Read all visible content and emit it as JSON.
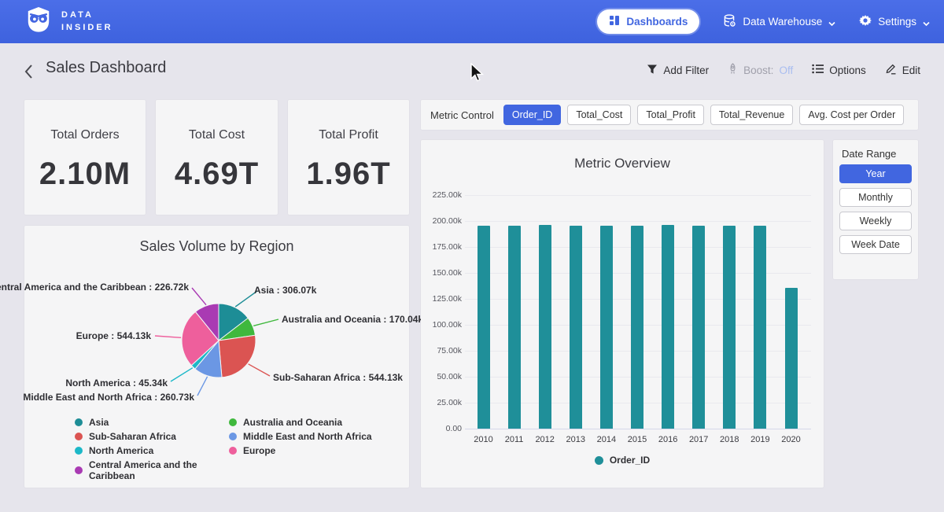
{
  "navbar": {
    "brand_line1": "DATA",
    "brand_line2": "INSIDER",
    "dashboards_label": "Dashboards",
    "data_warehouse_label": "Data Warehouse",
    "settings_label": "Settings"
  },
  "header": {
    "title": "Sales Dashboard",
    "add_filter_label": "Add Filter",
    "boost_label": "Boost:",
    "boost_state": "Off",
    "options_label": "Options",
    "edit_label": "Edit"
  },
  "kpis": [
    {
      "label": "Total Orders",
      "value": "2.10M"
    },
    {
      "label": "Total Cost",
      "value": "4.69T"
    },
    {
      "label": "Total Profit",
      "value": "1.96T"
    }
  ],
  "metric_control": {
    "label": "Metric Control",
    "options": [
      "Order_ID",
      "Total_Cost",
      "Total_Profit",
      "Total_Revenue",
      "Avg. Cost per Order"
    ],
    "selected": "Order_ID"
  },
  "date_range": {
    "label": "Date Range",
    "options": [
      "Year",
      "Monthly",
      "Weekly",
      "Week Date"
    ],
    "selected": "Year"
  },
  "colors": {
    "accent": "#4166e0",
    "navbar": "#4365e1",
    "bar": "#1f8f99",
    "card_bg": "#f5f5f6",
    "page_bg": "#e6e5ec"
  },
  "chart_data": [
    {
      "type": "pie",
      "title": "Sales Volume by Region",
      "unit": "k",
      "slices": [
        {
          "name": "Asia",
          "value": 306.07,
          "color": "#1d8d96"
        },
        {
          "name": "Australia and Oceania",
          "value": 170.04,
          "color": "#3fb83d"
        },
        {
          "name": "Sub-Saharan Africa",
          "value": 544.13,
          "color": "#db5452"
        },
        {
          "name": "Middle East and North Africa",
          "value": 260.73,
          "color": "#6b97e4"
        },
        {
          "name": "North America",
          "value": 45.34,
          "color": "#1cb8c8"
        },
        {
          "name": "Europe",
          "value": 544.13,
          "color": "#ee5f9c"
        },
        {
          "name": "Central America and the Caribbean",
          "value": 226.72,
          "color": "#a93ab3"
        }
      ],
      "legend_order": [
        "Asia",
        "Australia and Oceania",
        "Sub-Saharan Africa",
        "Middle East and North Africa",
        "North America",
        "Europe",
        "Central America and the Caribbean"
      ],
      "legend_position": "bottom"
    },
    {
      "type": "bar",
      "title": "Metric Overview",
      "categories": [
        "2010",
        "2011",
        "2012",
        "2013",
        "2014",
        "2015",
        "2016",
        "2017",
        "2018",
        "2019",
        "2020"
      ],
      "series": [
        {
          "name": "Order_ID",
          "color": "#1f8f99",
          "values": [
            195.6,
            195.6,
            196.6,
            195.8,
            195.5,
            195.6,
            196.6,
            195.7,
            195.6,
            195.8,
            135.5
          ]
        }
      ],
      "unit": "k",
      "ylim": [
        0,
        225
      ],
      "ytick_step": 25,
      "grid": true,
      "legend_position": "bottom"
    }
  ]
}
